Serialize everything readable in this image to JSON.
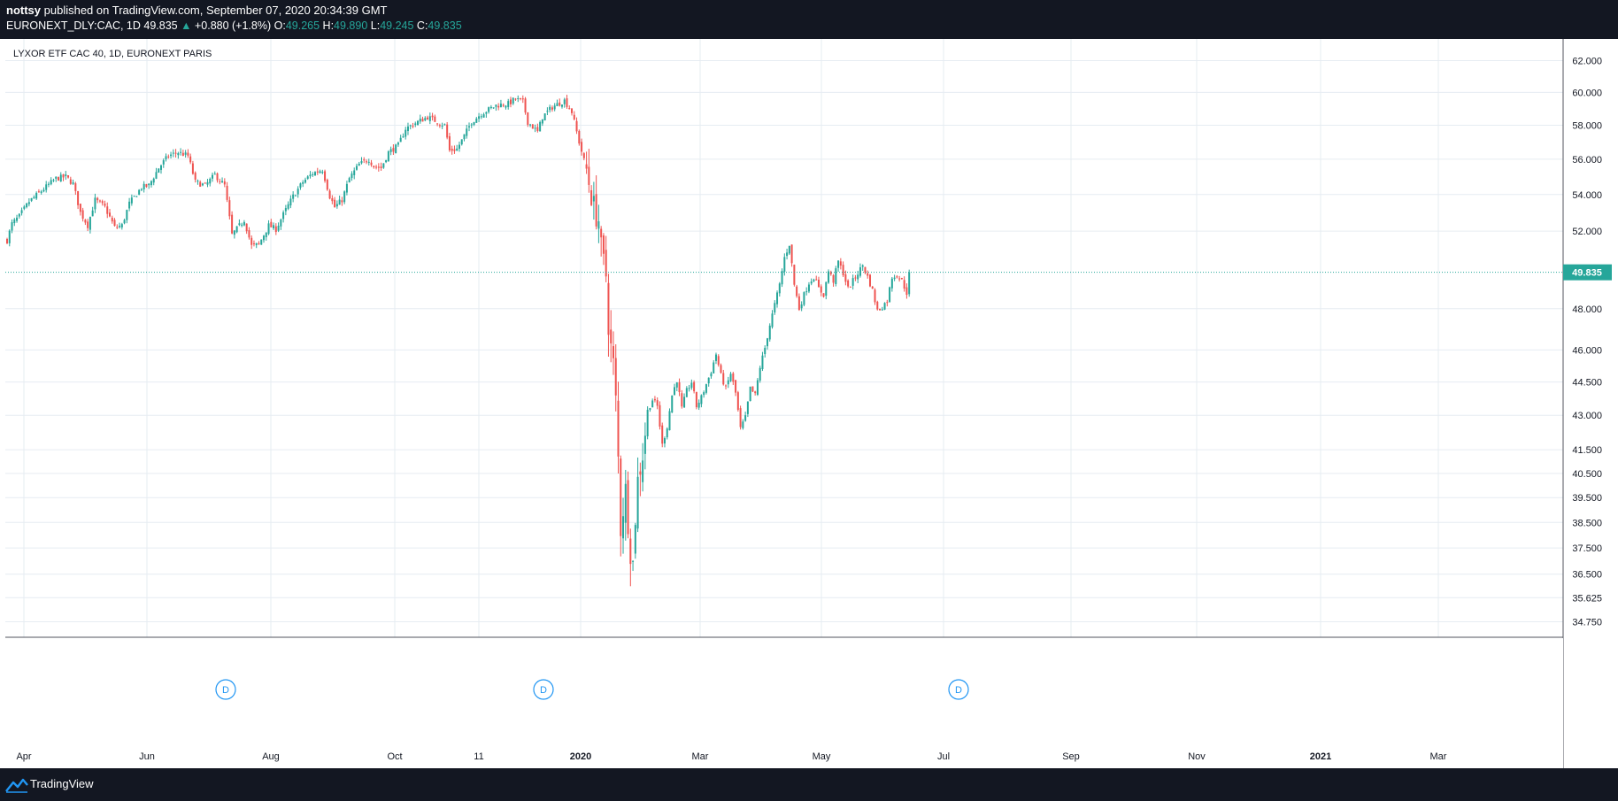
{
  "header": {
    "author": "nottsy",
    "published_text": "published on TradingView.com, September 07, 2020 20:34:39 GMT",
    "symbol": "EURONEXT_DLY:CAC, 1D",
    "last": "49.835",
    "change_arrow": "▲",
    "change": "+0.880 (+1.8%)",
    "o_label": "O:",
    "o_value": "49.265",
    "h_label": "H:",
    "h_value": "49.890",
    "l_label": "L:",
    "l_value": "49.245",
    "c_label": "C:",
    "c_value": "49.835"
  },
  "footer": {
    "brand": "TradingView"
  },
  "colors": {
    "up": "#26a69a",
    "down": "#ef5350",
    "grid": "#e6ecf2",
    "price_tag": "#26a69a",
    "event": "#2196f3"
  },
  "chart_data": {
    "type": "candlestick",
    "title": "LYXOR ETF CAC 40, 1D, EURONEXT PARIS",
    "y_axis_labels": [
      "62.000",
      "60.000",
      "58.000",
      "56.000",
      "54.000",
      "52.000",
      "48.000",
      "46.000",
      "44.500",
      "43.000",
      "41.500",
      "40.500",
      "39.500",
      "38.500",
      "37.500",
      "36.500",
      "35.625",
      "34.750"
    ],
    "y_axis_values": [
      62.0,
      60.0,
      58.0,
      56.0,
      54.0,
      52.0,
      48.0,
      46.0,
      44.5,
      43.0,
      41.5,
      40.5,
      39.5,
      38.5,
      37.5,
      36.5,
      35.625,
      34.75
    ],
    "y_scale": "log",
    "ylim": [
      34.2,
      63.4
    ],
    "x_axis_labels": [
      "Apr",
      "Jun",
      "Aug",
      "Oct",
      "11",
      "2020",
      "Mar",
      "May",
      "Jul",
      "Sep",
      "Nov",
      "2021",
      "Mar"
    ],
    "x_axis_bold": [
      "2020",
      "2021"
    ],
    "last_price": 49.835,
    "last_price_label": "49.835",
    "event_markers": [
      "D",
      "D",
      "D"
    ],
    "grid": true,
    "candle_count": 370,
    "path": [
      [
        0,
        51.5
      ],
      [
        2,
        52.4
      ],
      [
        5,
        52.8
      ],
      [
        9,
        53.6
      ],
      [
        14,
        54.2
      ],
      [
        20,
        54.9
      ],
      [
        24,
        55.0
      ],
      [
        27,
        54.6
      ],
      [
        30,
        53.0
      ],
      [
        33,
        52.3
      ],
      [
        36,
        53.7
      ],
      [
        40,
        53.3
      ],
      [
        44,
        52.2
      ],
      [
        47,
        52.3
      ],
      [
        50,
        53.5
      ],
      [
        55,
        54.4
      ],
      [
        58,
        54.5
      ],
      [
        62,
        55.5
      ],
      [
        66,
        56.2
      ],
      [
        70,
        56.4
      ],
      [
        74,
        56.2
      ],
      [
        77,
        54.7
      ],
      [
        81,
        54.5
      ],
      [
        85,
        55.1
      ],
      [
        89,
        54.5
      ],
      [
        92,
        51.8
      ],
      [
        97,
        52.6
      ],
      [
        100,
        51.2
      ],
      [
        103,
        51.3
      ],
      [
        107,
        52.3
      ],
      [
        110,
        52.1
      ],
      [
        113,
        52.9
      ],
      [
        117,
        53.9
      ],
      [
        121,
        54.7
      ],
      [
        125,
        55.2
      ],
      [
        129,
        55.4
      ],
      [
        132,
        53.9
      ],
      [
        134,
        53.3
      ],
      [
        137,
        53.7
      ],
      [
        140,
        54.9
      ],
      [
        144,
        55.7
      ],
      [
        148,
        56.0
      ],
      [
        150,
        55.6
      ],
      [
        153,
        55.5
      ],
      [
        156,
        56.4
      ],
      [
        160,
        56.8
      ],
      [
        163,
        57.8
      ],
      [
        168,
        58.2
      ],
      [
        172,
        58.5
      ],
      [
        176,
        58.2
      ],
      [
        179,
        58.0
      ],
      [
        181,
        56.5
      ],
      [
        184,
        56.6
      ],
      [
        186,
        57.1
      ],
      [
        190,
        58.2
      ],
      [
        194,
        58.7
      ],
      [
        200,
        59.2
      ],
      [
        205,
        59.3
      ],
      [
        208,
        59.6
      ],
      [
        211,
        59.4
      ],
      [
        213,
        58.2
      ],
      [
        217,
        57.6
      ],
      [
        219,
        58.5
      ],
      [
        223,
        59.1
      ],
      [
        228,
        59.5
      ],
      [
        231,
        58.8
      ],
      [
        234,
        57.0
      ],
      [
        237,
        55.4
      ],
      [
        240,
        53.3
      ],
      [
        241,
        52.9
      ],
      [
        242,
        52.6
      ],
      [
        243,
        51.0
      ],
      [
        244,
        50.3
      ],
      [
        245,
        49.7
      ],
      [
        246,
        47.3
      ],
      [
        247,
        46.1
      ],
      [
        248,
        45.3
      ],
      [
        249,
        43.6
      ],
      [
        250,
        41.1
      ],
      [
        251,
        38.3
      ],
      [
        253,
        39.8
      ],
      [
        255,
        37.4
      ],
      [
        256,
        36.9
      ],
      [
        257,
        38.7
      ],
      [
        258,
        40.2
      ],
      [
        260,
        41.3
      ],
      [
        262,
        43.2
      ],
      [
        264,
        43.7
      ],
      [
        266,
        43.4
      ],
      [
        268,
        41.7
      ],
      [
        270,
        42.5
      ],
      [
        272,
        43.9
      ],
      [
        274,
        44.6
      ],
      [
        276,
        43.3
      ],
      [
        278,
        44.1
      ],
      [
        280,
        44.5
      ],
      [
        282,
        43.4
      ],
      [
        284,
        43.8
      ],
      [
        286,
        44.4
      ],
      [
        288,
        45.0
      ],
      [
        290,
        45.8
      ],
      [
        292,
        44.8
      ],
      [
        294,
        44.2
      ],
      [
        296,
        44.9
      ],
      [
        298,
        44.0
      ],
      [
        300,
        42.4
      ],
      [
        302,
        42.9
      ],
      [
        304,
        44.2
      ],
      [
        306,
        43.9
      ],
      [
        308,
        45.2
      ],
      [
        310,
        46.1
      ],
      [
        312,
        47.2
      ],
      [
        314,
        48.2
      ],
      [
        316,
        49.2
      ],
      [
        318,
        50.6
      ],
      [
        320,
        51.3
      ],
      [
        322,
        49.2
      ],
      [
        324,
        48.0
      ],
      [
        326,
        48.7
      ],
      [
        328,
        49.3
      ],
      [
        330,
        49.6
      ],
      [
        332,
        49.0
      ],
      [
        334,
        48.7
      ],
      [
        336,
        49.9
      ],
      [
        338,
        49.4
      ],
      [
        340,
        50.4
      ],
      [
        342,
        49.8
      ],
      [
        344,
        49.0
      ],
      [
        346,
        49.4
      ],
      [
        348,
        49.8
      ],
      [
        350,
        50.2
      ],
      [
        352,
        49.6
      ],
      [
        354,
        48.9
      ],
      [
        356,
        47.9
      ],
      [
        358,
        48.1
      ],
      [
        360,
        48.4
      ],
      [
        362,
        49.6
      ],
      [
        364,
        49.7
      ],
      [
        366,
        49.4
      ],
      [
        368,
        48.8
      ],
      [
        370,
        49.1
      ],
      [
        372,
        49.5
      ],
      [
        374,
        49.3
      ],
      [
        376,
        48.8
      ],
      [
        378,
        48.6
      ],
      [
        380,
        49.3
      ],
      [
        382,
        49.7
      ],
      [
        384,
        49.2
      ],
      [
        386,
        49.835
      ]
    ]
  }
}
